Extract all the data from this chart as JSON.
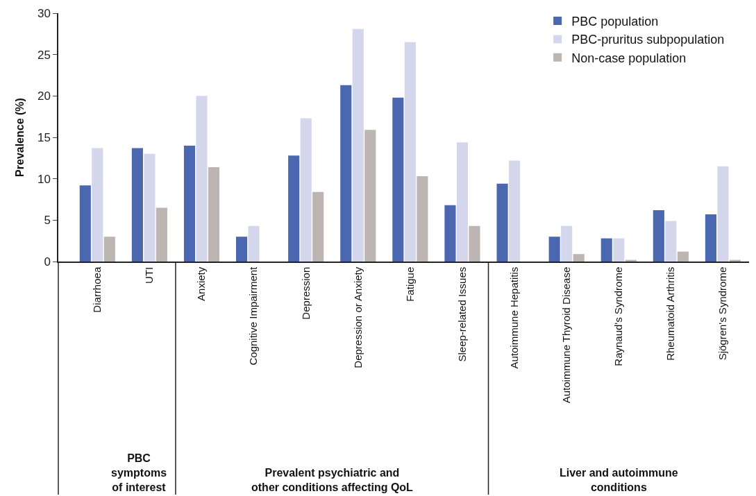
{
  "chart_data": {
    "type": "bar",
    "ylabel": "Prevalence (%)",
    "categories": [
      "Diarrhoea",
      "UTI",
      "Anxiety",
      "Cognitive Impairment",
      "Depression",
      "Depression or Anxiety",
      "Fatigue",
      "Sleep-related Issues",
      "Autoimmune Hepatitis",
      "Autoimmune Thyroid Disease",
      "Raynaud's Syndrome",
      "Rheumatoid Arthritis",
      "Sjögren's Syndrome"
    ],
    "series": [
      {
        "name": "PBC population",
        "color": "#4a67b0",
        "values": [
          9.2,
          13.7,
          14.0,
          3.0,
          12.8,
          21.3,
          19.8,
          6.8,
          9.4,
          3.0,
          2.8,
          6.2,
          5.7
        ]
      },
      {
        "name": "PBC-pruritus subpopulation",
        "color": "#d4d7eb",
        "values": [
          13.7,
          13.0,
          20.0,
          4.3,
          17.3,
          28.1,
          26.5,
          14.4,
          12.2,
          4.3,
          2.8,
          4.9,
          11.5
        ]
      },
      {
        "name": "Non-case population",
        "color": "#bdb5b1",
        "values": [
          3.0,
          6.5,
          11.4,
          null,
          8.4,
          15.9,
          10.3,
          4.3,
          null,
          0.9,
          0.2,
          1.2,
          0.2
        ]
      }
    ],
    "ylim": [
      0,
      30
    ],
    "yticks": [
      0,
      5,
      10,
      15,
      20,
      25,
      30
    ],
    "legend": "top right",
    "annotations": [
      "PBC\nsymptoms\nof interest",
      "Prevalent psychiatric and\nother conditions affecting QoL",
      "Liver and autoimmune\nconditions"
    ]
  }
}
